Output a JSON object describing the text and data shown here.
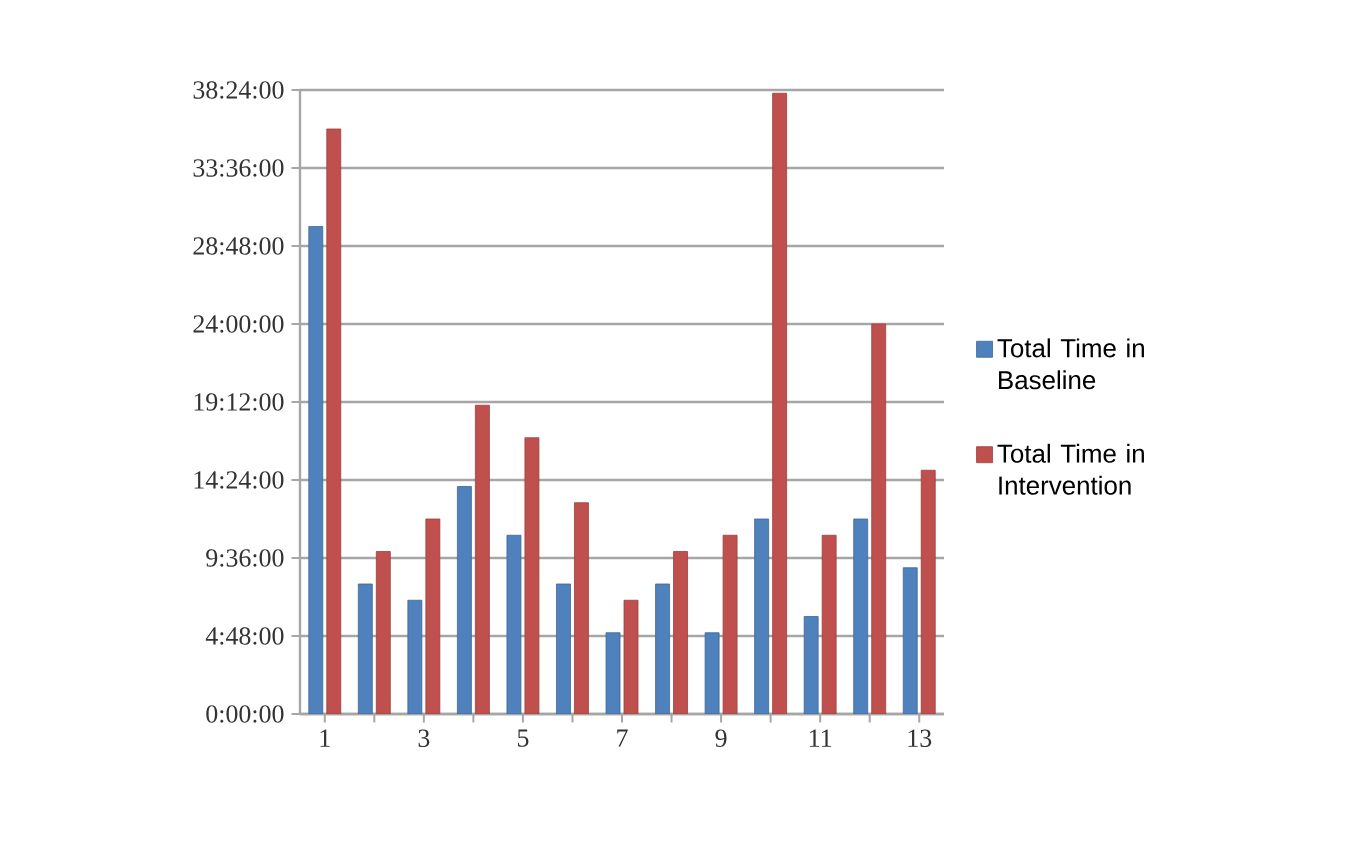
{
  "chart_data": {
    "type": "bar",
    "categories": [
      "1",
      null,
      "3",
      null,
      "5",
      null,
      "7",
      null,
      "9",
      null,
      "11",
      null,
      "13"
    ],
    "series": [
      {
        "name": "Total Time in Baseline",
        "color": "#4f81bd",
        "values": [
          30,
          8,
          7,
          14,
          11,
          8,
          5,
          8,
          5,
          12,
          6,
          12,
          9
        ]
      },
      {
        "name": "Total Time in Intervention",
        "color": "#c0504d",
        "values": [
          36,
          10,
          12,
          19,
          17,
          13,
          7,
          10,
          11,
          38.2,
          11,
          24,
          15
        ]
      }
    ],
    "ylim": [
      0,
      38.4
    ],
    "yticks": [
      {
        "value": 0,
        "label": "0:00:00"
      },
      {
        "value": 4.8,
        "label": "4:48:00"
      },
      {
        "value": 9.6,
        "label": "9:36:00"
      },
      {
        "value": 14.4,
        "label": "14:24:00"
      },
      {
        "value": 19.2,
        "label": "19:12:00"
      },
      {
        "value": 24,
        "label": "24:00:00"
      },
      {
        "value": 28.8,
        "label": "28:48:00"
      },
      {
        "value": 33.6,
        "label": "33:36:00"
      },
      {
        "value": 38.4,
        "label": "38:24:00"
      }
    ],
    "grid": "y",
    "legend": "right"
  }
}
